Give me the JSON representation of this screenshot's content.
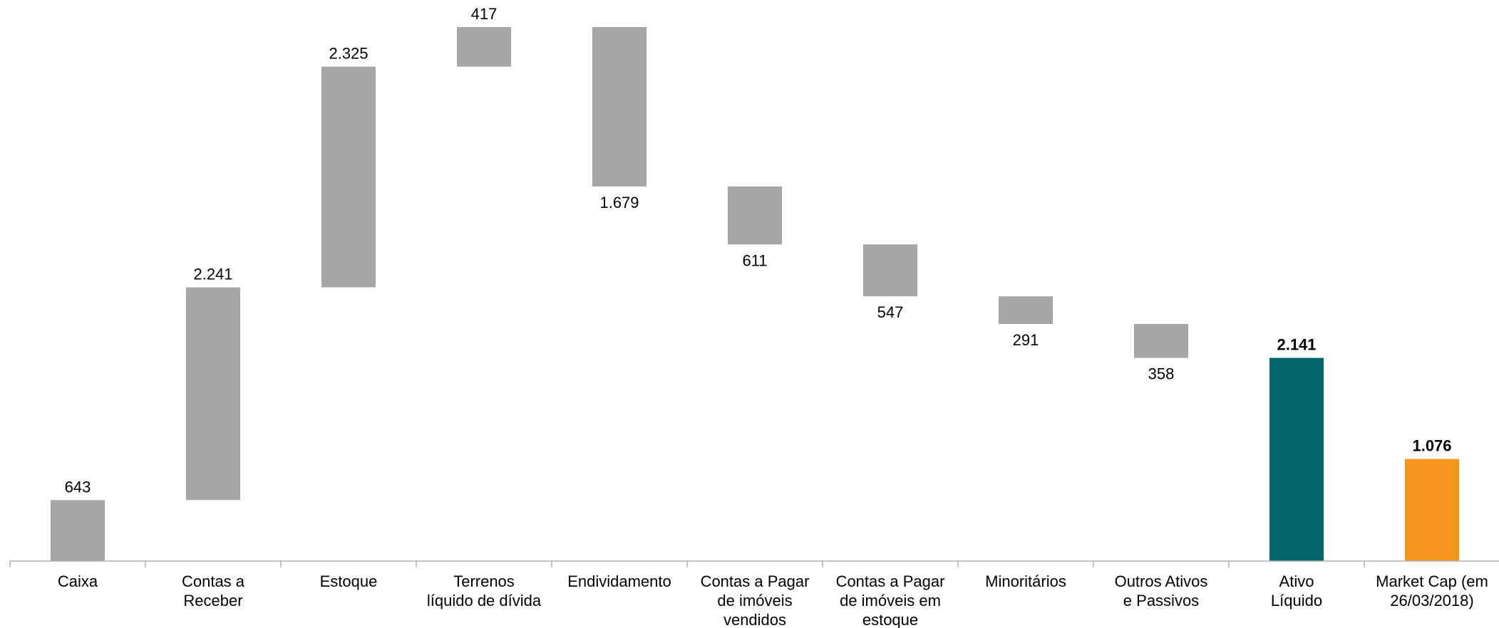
{
  "chart_data": {
    "type": "waterfall",
    "categories": [
      "Caixa",
      "Contas a Receber",
      "Estoque",
      "Terrenos líquido de dívida",
      "Endividamento",
      "Contas a Pagar de imóveis vendidos",
      "Contas a Pagar de imóveis em estoque",
      "Minoritários",
      "Outros Ativos e Passivos",
      "Ativo Líquido",
      "Market Cap (em 26/03/2018)"
    ],
    "category_lines": [
      [
        "Caixa"
      ],
      [
        "Contas a",
        "Receber"
      ],
      [
        "Estoque"
      ],
      [
        "Terrenos",
        "líquido de dívida"
      ],
      [
        "Endividamento"
      ],
      [
        "Contas a Pagar",
        "de imóveis",
        "vendidos"
      ],
      [
        "Contas a Pagar",
        "de imóveis em",
        "estoque"
      ],
      [
        "Minoritários"
      ],
      [
        "Outros Ativos",
        "e Passivos"
      ],
      [
        "Ativo",
        "Líquido"
      ],
      [
        "Market Cap (em",
        "26/03/2018)"
      ]
    ],
    "values": [
      643,
      2241,
      2325,
      417,
      -1679,
      -611,
      -547,
      -291,
      -358,
      2141,
      1076
    ],
    "value_labels": [
      "643",
      "2.241",
      "2.325",
      "417",
      "1.679",
      "611",
      "547",
      "291",
      "358",
      "2.141",
      "1.076"
    ],
    "bar_kinds": [
      "increase",
      "increase",
      "increase",
      "increase",
      "decrease",
      "decrease",
      "decrease",
      "decrease",
      "decrease",
      "total",
      "total"
    ],
    "colors": {
      "step": "#a6a6a6",
      "total": "#02666b",
      "market_cap": "#f5961e",
      "axis": "#b0b0b0"
    },
    "bar_colors": [
      "#a6a6a6",
      "#a6a6a6",
      "#a6a6a6",
      "#a6a6a6",
      "#a6a6a6",
      "#a6a6a6",
      "#a6a6a6",
      "#a6a6a6",
      "#a6a6a6",
      "#02666b",
      "#f5961e"
    ],
    "ylim": [
      0,
      5626
    ],
    "title": "",
    "xlabel": "",
    "ylabel": "",
    "grid": false,
    "legend": "none"
  }
}
